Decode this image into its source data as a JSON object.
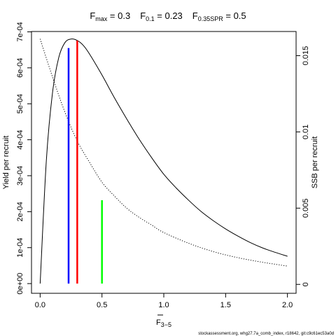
{
  "chart_data": {
    "type": "line",
    "title": {
      "fmax_main": "F",
      "fmax_sub": "max",
      "fmax_val": " = 0.3",
      "f01_main": "F",
      "f01_sub": "0.1",
      "f01_val": " = 0.23",
      "fspr_main": "F",
      "fspr_sub": "0.35SPR",
      "fspr_val": " = 0.5"
    },
    "xlabel_main": "F",
    "xlabel_sub": "3−5",
    "ylabel_left": "Yield per recruit",
    "ylabel_right": "SSB per recruit",
    "xlim": [
      -0.07,
      2.07
    ],
    "ylim_left": [
      -2.7e-05,
      0.000701
    ],
    "ylim_right": [
      -0.000585,
      0.016585
    ],
    "x_ticks": [
      0,
      0.5,
      1,
      1.5,
      2
    ],
    "x_tick_labels": [
      "0.0",
      "0.5",
      "1.0",
      "1.5",
      "2.0"
    ],
    "y_left_ticks": [
      0,
      0.0001,
      0.0002,
      0.0003,
      0.0004,
      0.0005,
      0.0006,
      0.0007
    ],
    "y_left_tick_labels": [
      "0e+00",
      "1e-04",
      "2e-04",
      "3e-04",
      "4e-04",
      "5e-04",
      "6e-04",
      "7e-04"
    ],
    "y_right_ticks": [
      0,
      0.005,
      0.01,
      0.015
    ],
    "y_right_tick_labels": [
      "0",
      "0.005",
      "0.01",
      "0.015"
    ],
    "series": [
      {
        "axis": "left",
        "style": "solid",
        "x": [
          0,
          0.05,
          0.1,
          0.15,
          0.2,
          0.25,
          0.3,
          0.35,
          0.4,
          0.5,
          0.6,
          0.7,
          0.8,
          0.9,
          1.0,
          1.1,
          1.2,
          1.3,
          1.4,
          1.5,
          1.6,
          1.7,
          1.8,
          1.9,
          2.0
        ],
        "y": [
          0.0,
          0.000342,
          0.000531,
          0.000628,
          0.00067,
          0.00068,
          0.000676,
          0.000662,
          0.000638,
          0.00058,
          0.000517,
          0.000458,
          0.000402,
          0.000351,
          0.000304,
          0.000266,
          0.000232,
          0.000201,
          0.000175,
          0.000152,
          0.000132,
          0.000114,
          9.9e-05,
          8.7e-05,
          7.6e-05
        ]
      },
      {
        "axis": "right",
        "style": "dotted",
        "x": [
          0,
          0.1,
          0.2,
          0.3,
          0.4,
          0.5,
          0.6,
          0.7,
          0.8,
          0.9,
          1.0,
          1.2,
          1.4,
          1.6,
          1.8,
          2.0
        ],
        "y": [
          0.0161,
          0.0136,
          0.0113,
          0.0094,
          0.008,
          0.0067,
          0.0058,
          0.005,
          0.0044,
          0.0039,
          0.0034,
          0.0027,
          0.00215,
          0.00175,
          0.00145,
          0.0012
        ]
      }
    ],
    "reference_lines": [
      {
        "x": 0.23,
        "y": 0.000655,
        "color": "#0000ff"
      },
      {
        "x": 0.3,
        "y": 0.000676,
        "color": "#ff0000"
      },
      {
        "x": 0.5,
        "y": 0.000232,
        "color": "#00ff00"
      }
    ]
  },
  "footer": "stockassessment.org, whg27.7a_comb_index, r18642, git:c9c61ec53a0d"
}
